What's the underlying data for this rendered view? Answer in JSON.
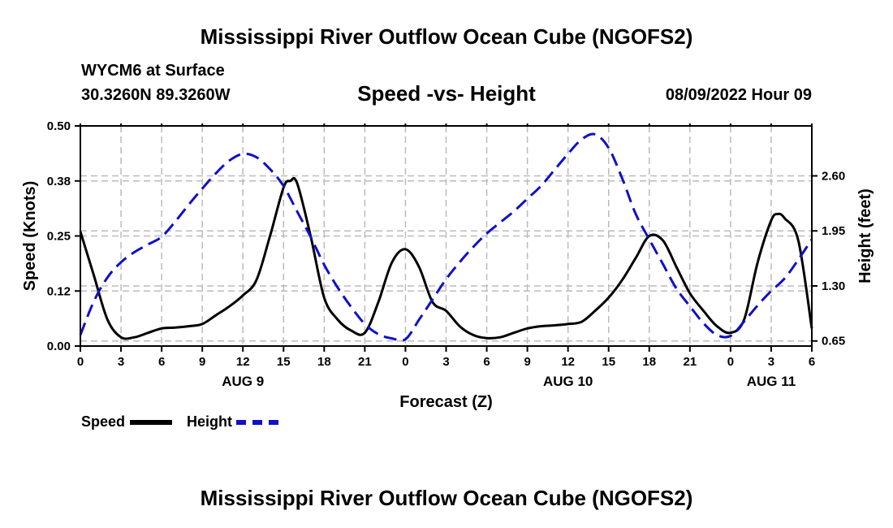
{
  "header": {
    "title": "Mississippi River Outflow Ocean Cube (NGOFS2)",
    "station": "WYCM6 at Surface",
    "coords": "30.3260N  89.3260W",
    "subtitle": "Speed -vs- Height",
    "datetime": "08/09/2022 Hour 09"
  },
  "footer": {
    "title": "Mississippi River Outflow Ocean Cube (NGOFS2)"
  },
  "legend": {
    "speed_label": "Speed",
    "height_label": "Height"
  },
  "colors": {
    "speed": "#000000",
    "height": "#1010c8",
    "grid": "#bbbbbb"
  },
  "chart_data": {
    "type": "line",
    "x_axis": {
      "label": "Forecast (Z)",
      "hours_range": [
        0,
        54
      ],
      "ticks": [
        {
          "hour": 0,
          "label": "0"
        },
        {
          "hour": 3,
          "label": "3"
        },
        {
          "hour": 6,
          "label": "6"
        },
        {
          "hour": 9,
          "label": "9"
        },
        {
          "hour": 12,
          "label": "12"
        },
        {
          "hour": 15,
          "label": "15"
        },
        {
          "hour": 18,
          "label": "18"
        },
        {
          "hour": 21,
          "label": "21"
        },
        {
          "hour": 24,
          "label": "0"
        },
        {
          "hour": 27,
          "label": "3"
        },
        {
          "hour": 30,
          "label": "6"
        },
        {
          "hour": 33,
          "label": "9"
        },
        {
          "hour": 36,
          "label": "12"
        },
        {
          "hour": 39,
          "label": "15"
        },
        {
          "hour": 42,
          "label": "18"
        },
        {
          "hour": 45,
          "label": "21"
        },
        {
          "hour": 48,
          "label": "0"
        },
        {
          "hour": 51,
          "label": "3"
        },
        {
          "hour": 54,
          "label": "6"
        }
      ],
      "date_labels": [
        {
          "hour": 12,
          "label": "AUG 9"
        },
        {
          "hour": 36,
          "label": "AUG 10"
        },
        {
          "hour": 51,
          "label": "AUG 11"
        }
      ]
    },
    "y_left": {
      "label": "Speed (Knots)",
      "range": [
        0,
        0.5
      ],
      "ticks": [
        {
          "value": 0.0,
          "label": "0.00"
        },
        {
          "value": 0.125,
          "label": "0.12"
        },
        {
          "value": 0.25,
          "label": "0.25"
        },
        {
          "value": 0.375,
          "label": "0.38"
        },
        {
          "value": 0.5,
          "label": "0.50"
        }
      ]
    },
    "y_right": {
      "label": "Height (feet)",
      "range": [
        0.59,
        3.19
      ],
      "ticks": [
        {
          "value": 0.65,
          "label": "0.65"
        },
        {
          "value": 1.3,
          "label": "1.30"
        },
        {
          "value": 1.95,
          "label": "1.95"
        },
        {
          "value": 2.6,
          "label": "2.60"
        }
      ]
    },
    "series": [
      {
        "name": "Speed",
        "axis": "left",
        "style": "solid",
        "hours": [
          0,
          1,
          2,
          3,
          4,
          5,
          6,
          7,
          8,
          9,
          10,
          11,
          12,
          13,
          14,
          15,
          15.5,
          16,
          17,
          18,
          19,
          20,
          21,
          22,
          23,
          24,
          25,
          26,
          27,
          28,
          29,
          30,
          31,
          32,
          33,
          34,
          35,
          36,
          37,
          38,
          39,
          40,
          41,
          42,
          43,
          44,
          45,
          46,
          47,
          48,
          49,
          50,
          51,
          51.5,
          52,
          53,
          54
        ],
        "values": [
          0.26,
          0.16,
          0.06,
          0.02,
          0.02,
          0.03,
          0.04,
          0.042,
          0.045,
          0.05,
          0.07,
          0.09,
          0.115,
          0.15,
          0.25,
          0.36,
          0.375,
          0.37,
          0.25,
          0.11,
          0.06,
          0.035,
          0.03,
          0.1,
          0.19,
          0.22,
          0.18,
          0.1,
          0.08,
          0.045,
          0.025,
          0.018,
          0.02,
          0.03,
          0.04,
          0.045,
          0.047,
          0.05,
          0.055,
          0.08,
          0.11,
          0.15,
          0.2,
          0.25,
          0.24,
          0.18,
          0.12,
          0.08,
          0.045,
          0.03,
          0.06,
          0.19,
          0.285,
          0.3,
          0.29,
          0.24,
          0.04
        ]
      },
      {
        "name": "Height",
        "axis": "right",
        "style": "dashed",
        "hours": [
          0,
          1,
          2,
          3,
          4,
          5,
          6,
          7,
          8,
          9,
          10,
          11,
          12,
          13,
          14,
          15,
          16,
          17,
          18,
          19,
          20,
          21,
          22,
          23,
          24,
          25,
          26,
          27,
          28,
          29,
          30,
          31,
          32,
          33,
          34,
          35,
          36,
          37,
          38,
          39,
          40,
          41,
          42,
          43,
          44,
          45,
          46,
          47,
          48,
          49,
          50,
          51,
          52,
          53,
          54
        ],
        "values": [
          0.72,
          1.12,
          1.4,
          1.58,
          1.7,
          1.79,
          1.88,
          2.06,
          2.26,
          2.45,
          2.63,
          2.78,
          2.86,
          2.82,
          2.68,
          2.48,
          2.18,
          1.88,
          1.55,
          1.28,
          1.05,
          0.85,
          0.73,
          0.68,
          0.67,
          0.9,
          1.14,
          1.38,
          1.58,
          1.76,
          1.92,
          2.05,
          2.18,
          2.33,
          2.48,
          2.67,
          2.86,
          3.03,
          3.09,
          2.93,
          2.57,
          2.15,
          1.85,
          1.56,
          1.27,
          1.06,
          0.86,
          0.72,
          0.71,
          0.88,
          1.07,
          1.24,
          1.39,
          1.61,
          1.85
        ]
      }
    ]
  }
}
